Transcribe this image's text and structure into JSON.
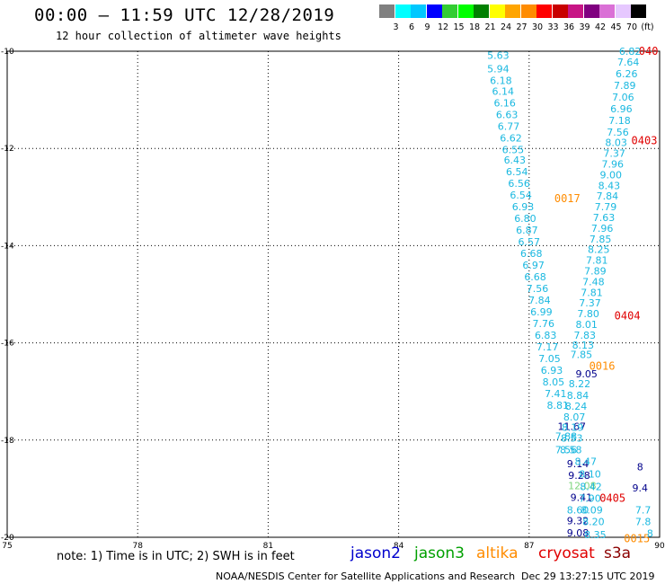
{
  "header": {
    "title": "00:00 – 11:59 UTC 12/28/2019",
    "subtitle": "12 hour collection of altimeter wave heights"
  },
  "color_scale": {
    "colors": [
      "#808080",
      "#00ffff",
      "#00c8ff",
      "#0000ff",
      "#32cd32",
      "#00ff00",
      "#008000",
      "#ffff00",
      "#ffa500",
      "#ff8c00",
      "#ff0000",
      "#c80000",
      "#c71585",
      "#800080",
      "#da70d6",
      "#e6c8ff",
      "#000000"
    ],
    "labels": [
      "3",
      "6",
      "9",
      "12",
      "15",
      "18",
      "21",
      "24",
      "27",
      "30",
      "33",
      "36",
      "39",
      "42",
      "45",
      "70",
      "(ft)"
    ]
  },
  "chart_data": {
    "type": "scatter",
    "title": "00:00 – 11:59 UTC 12/28/2019",
    "xlim": [
      75,
      90
    ],
    "ylim": [
      -20,
      -10
    ],
    "x_ticks": [
      "75",
      "78",
      "81",
      "84",
      "87",
      "90"
    ],
    "y_ticks": [
      "-10",
      "-12",
      "-14",
      "-16",
      "-18",
      "-20"
    ],
    "grid": "dotted",
    "series": [
      {
        "name": "jason2",
        "color": "#00008b",
        "points": [
          {
            "lon": 88.32,
            "lat": -16.64,
            "label": "9.05"
          },
          {
            "lon": 87.98,
            "lat": -17.72,
            "label": "11.67"
          },
          {
            "lon": 88.12,
            "lat": -18.48,
            "label": "9.14"
          },
          {
            "lon": 88.15,
            "lat": -18.72,
            "label": "9.28"
          },
          {
            "lon": 88.2,
            "lat": -19.18,
            "label": "9.41"
          },
          {
            "lon": 88.12,
            "lat": -19.66,
            "label": "9.32"
          },
          {
            "lon": 88.12,
            "lat": -19.91,
            "label": "9.08"
          },
          {
            "lon": 89.55,
            "lat": -18.55,
            "label": "8"
          },
          {
            "lon": 89.55,
            "lat": -18.98,
            "label": "9.4"
          }
        ]
      },
      {
        "name": "jason3",
        "color": "#7fd67f",
        "points": [
          {
            "lon": 88.22,
            "lat": -18.94,
            "label": "12.08"
          }
        ]
      },
      {
        "name": "altika",
        "color": "#ff8c00",
        "labels": [
          {
            "lon": 87.58,
            "lat": -13.03,
            "label": "0017"
          },
          {
            "lon": 88.38,
            "lat": -16.48,
            "label": "0016"
          },
          {
            "lon": 89.18,
            "lat": -20.03,
            "label": "0015"
          }
        ],
        "points": []
      },
      {
        "name": "cryosat",
        "color": "#e00000",
        "labels": [
          {
            "lon": 89.52,
            "lat": -10.0,
            "label": "040"
          },
          {
            "lon": 89.35,
            "lat": -11.84,
            "label": "0403"
          },
          {
            "lon": 88.96,
            "lat": -15.44,
            "label": "0404"
          },
          {
            "lon": 88.62,
            "lat": -19.2,
            "label": "0405"
          }
        ],
        "points": []
      },
      {
        "name": "s3a",
        "color": "#1ab8e0",
        "points": [
          {
            "lon": 86.29,
            "lat": -10.08,
            "label": "5.63"
          },
          {
            "lon": 86.29,
            "lat": -10.36,
            "label": "5.94"
          },
          {
            "lon": 86.35,
            "lat": -10.6,
            "label": "6.18"
          },
          {
            "lon": 86.4,
            "lat": -10.82,
            "label": "6.14"
          },
          {
            "lon": 86.44,
            "lat": -11.06,
            "label": "6.16"
          },
          {
            "lon": 86.49,
            "lat": -11.3,
            "label": "6.63"
          },
          {
            "lon": 86.53,
            "lat": -11.54,
            "label": "6.77"
          },
          {
            "lon": 86.58,
            "lat": -11.78,
            "label": "6.62"
          },
          {
            "lon": 86.63,
            "lat": -12.02,
            "label": "6.55"
          },
          {
            "lon": 86.67,
            "lat": -12.24,
            "label": "6.43"
          },
          {
            "lon": 86.72,
            "lat": -12.48,
            "label": "6.54"
          },
          {
            "lon": 86.77,
            "lat": -12.72,
            "label": "6.56"
          },
          {
            "lon": 86.81,
            "lat": -12.96,
            "label": "6.54"
          },
          {
            "lon": 86.86,
            "lat": -13.2,
            "label": "6.93"
          },
          {
            "lon": 86.91,
            "lat": -13.44,
            "label": "6.80"
          },
          {
            "lon": 86.95,
            "lat": -13.68,
            "label": "6.87"
          },
          {
            "lon": 87.0,
            "lat": -13.92,
            "label": "6.57"
          },
          {
            "lon": 87.05,
            "lat": -14.16,
            "label": "6.68"
          },
          {
            "lon": 87.1,
            "lat": -14.4,
            "label": "6.97"
          },
          {
            "lon": 87.14,
            "lat": -14.64,
            "label": "6.68"
          },
          {
            "lon": 87.19,
            "lat": -14.88,
            "label": "7.56"
          },
          {
            "lon": 87.24,
            "lat": -15.12,
            "label": "7.84"
          },
          {
            "lon": 87.28,
            "lat": -15.36,
            "label": "6.99"
          },
          {
            "lon": 87.33,
            "lat": -15.6,
            "label": "7.76"
          },
          {
            "lon": 87.38,
            "lat": -15.84,
            "label": "6.83"
          },
          {
            "lon": 87.42,
            "lat": -16.08,
            "label": "7.17"
          },
          {
            "lon": 87.47,
            "lat": -16.32,
            "label": "7.05"
          },
          {
            "lon": 87.52,
            "lat": -16.56,
            "label": "6.93"
          },
          {
            "lon": 87.56,
            "lat": -16.8,
            "label": "8.05"
          },
          {
            "lon": 87.61,
            "lat": -17.04,
            "label": "7.41"
          },
          {
            "lon": 87.66,
            "lat": -17.28,
            "label": "8.81"
          },
          {
            "lon": 87.85,
            "lat": -17.92,
            "label": "7.88"
          },
          {
            "lon": 87.85,
            "lat": -18.2,
            "label": "7.56"
          },
          {
            "lon": 89.32,
            "lat": -10.0,
            "label": "6.82"
          },
          {
            "lon": 89.28,
            "lat": -10.22,
            "label": "7.64"
          },
          {
            "lon": 89.24,
            "lat": -10.46,
            "label": "6.26"
          },
          {
            "lon": 89.2,
            "lat": -10.7,
            "label": "7.89"
          },
          {
            "lon": 89.16,
            "lat": -10.94,
            "label": "7.06"
          },
          {
            "lon": 89.12,
            "lat": -11.18,
            "label": "6.96"
          },
          {
            "lon": 89.08,
            "lat": -11.42,
            "label": "7.18"
          },
          {
            "lon": 89.04,
            "lat": -11.66,
            "label": "7.56"
          },
          {
            "lon": 89.0,
            "lat": -11.88,
            "label": "8.03"
          },
          {
            "lon": 88.96,
            "lat": -12.1,
            "label": "7.37"
          },
          {
            "lon": 88.92,
            "lat": -12.32,
            "label": "7.96"
          },
          {
            "lon": 88.88,
            "lat": -12.54,
            "label": "9.00"
          },
          {
            "lon": 88.84,
            "lat": -12.76,
            "label": "8.43"
          },
          {
            "lon": 88.8,
            "lat": -12.98,
            "label": "7.84"
          },
          {
            "lon": 88.76,
            "lat": -13.2,
            "label": "7.79"
          },
          {
            "lon": 88.72,
            "lat": -13.42,
            "label": "7.63"
          },
          {
            "lon": 88.68,
            "lat": -13.64,
            "label": "7.96"
          },
          {
            "lon": 88.64,
            "lat": -13.86,
            "label": "7.85"
          },
          {
            "lon": 88.6,
            "lat": -14.08,
            "label": "8.25"
          },
          {
            "lon": 88.56,
            "lat": -14.3,
            "label": "7.81"
          },
          {
            "lon": 88.52,
            "lat": -14.52,
            "label": "7.89"
          },
          {
            "lon": 88.48,
            "lat": -14.74,
            "label": "7.48"
          },
          {
            "lon": 88.44,
            "lat": -14.96,
            "label": "7.81"
          },
          {
            "lon": 88.4,
            "lat": -15.18,
            "label": "7.37"
          },
          {
            "lon": 88.36,
            "lat": -15.4,
            "label": "7.80"
          },
          {
            "lon": 88.32,
            "lat": -15.62,
            "label": "8.01"
          },
          {
            "lon": 88.28,
            "lat": -15.84,
            "label": "7.83"
          },
          {
            "lon": 88.24,
            "lat": -16.04,
            "label": "8.13"
          },
          {
            "lon": 88.2,
            "lat": -16.24,
            "label": "7.85"
          },
          {
            "lon": 88.16,
            "lat": -16.84,
            "label": "8.22"
          },
          {
            "lon": 88.12,
            "lat": -17.08,
            "label": "8.84"
          },
          {
            "lon": 88.08,
            "lat": -17.3,
            "label": "8.24"
          },
          {
            "lon": 88.04,
            "lat": -17.52,
            "label": "8.07"
          },
          {
            "lon": 88.0,
            "lat": -17.74,
            "label": "8.19"
          },
          {
            "lon": 87.98,
            "lat": -17.96,
            "label": "8.53"
          },
          {
            "lon": 87.96,
            "lat": -18.2,
            "label": "8.58"
          },
          {
            "lon": 88.3,
            "lat": -18.44,
            "label": "8.47"
          },
          {
            "lon": 88.4,
            "lat": -18.7,
            "label": "8.10"
          },
          {
            "lon": 88.42,
            "lat": -18.96,
            "label": "8.42"
          },
          {
            "lon": 88.4,
            "lat": -19.2,
            "label": "7.90"
          },
          {
            "lon": 88.44,
            "lat": -19.44,
            "label": "8.09"
          },
          {
            "lon": 88.48,
            "lat": -19.68,
            "label": "8.20"
          },
          {
            "lon": 88.52,
            "lat": -19.94,
            "label": "8.35"
          },
          {
            "lon": 88.12,
            "lat": -19.44,
            "label": "8.60"
          },
          {
            "lon": 89.62,
            "lat": -19.44,
            "label": "7.7"
          },
          {
            "lon": 89.62,
            "lat": -19.68,
            "label": "7.8"
          },
          {
            "lon": 89.78,
            "lat": -19.92,
            "label": "8"
          }
        ]
      }
    ]
  },
  "footer": {
    "note": "note: 1) Time is in UTC; 2) SWH is in feet",
    "legend": [
      {
        "name": "jason2",
        "color": "#0000cd"
      },
      {
        "name": "jason3",
        "color": "#00a000"
      },
      {
        "name": "altika",
        "color": "#ff8c00"
      },
      {
        "name": "cryosat",
        "color": "#e00000"
      },
      {
        "name": "s3a",
        "color": "#8b0000"
      }
    ],
    "credit": "NOAA/NESDIS Center for Satellite Applications and Research",
    "timestamp": "Dec 29 13:27:15 UTC 2019"
  }
}
